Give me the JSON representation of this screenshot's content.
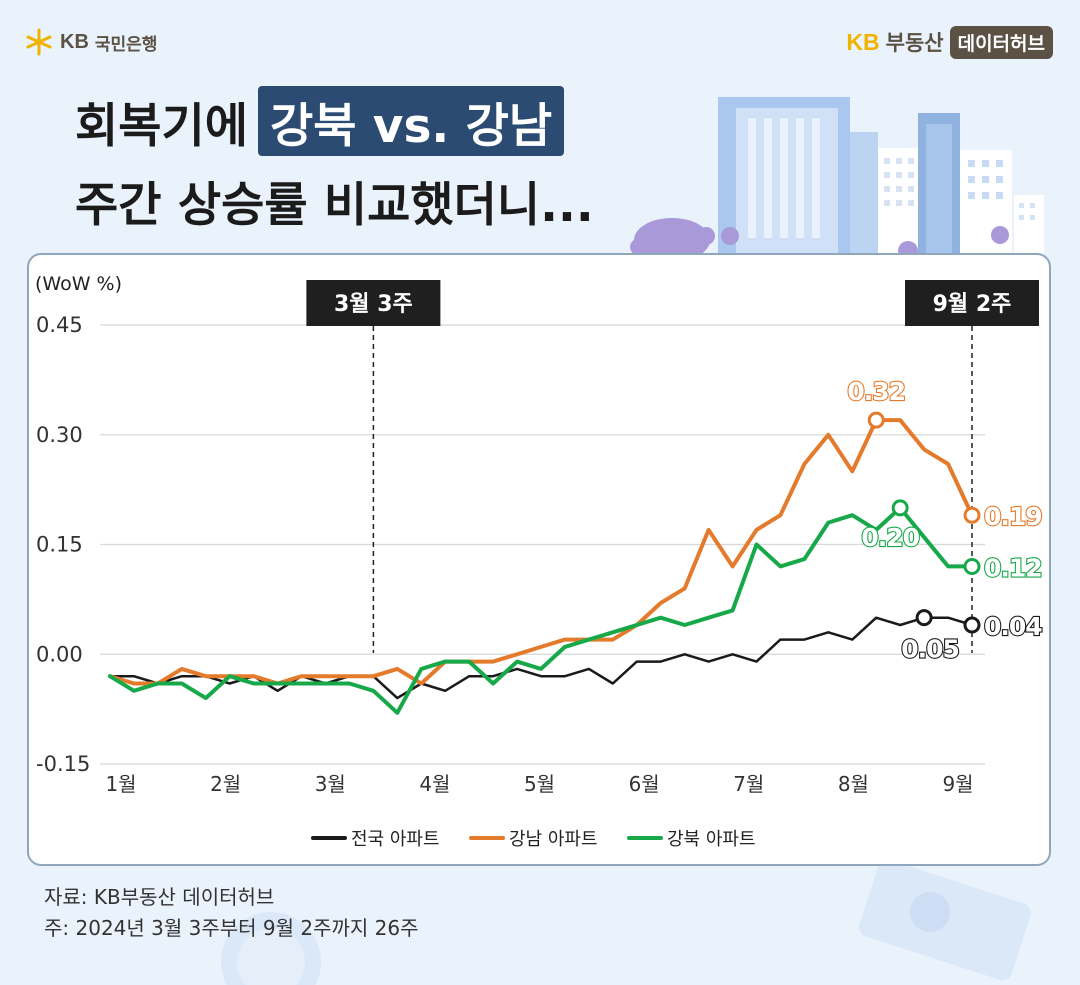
{
  "header": {
    "left_logo_kb": "KB",
    "left_logo_bank": "국민은행",
    "right_logo_kb": "KB",
    "right_logo_realestate": "부동산",
    "right_logo_hub": "데이터허브"
  },
  "title": {
    "line1_prefix": "회복기에",
    "line1_highlight": "강북 vs. 강남",
    "line2": "주간 상승률 비교했더니..."
  },
  "footer": {
    "source": "자료: KB부동산 데이터허브",
    "note": "주: 2024년 3월 3주부터 9월 2주까지 26주"
  },
  "colors": {
    "national": "#1a1a1a",
    "gangnam": "#e47b2c",
    "gangbuk": "#17a84a",
    "highlight_bg": "#2b4b72",
    "card_border": "#8fa6bd"
  },
  "chart_data": {
    "type": "line",
    "unit_label": "(WoW %)",
    "ylim": [
      -0.15,
      0.45
    ],
    "yticks": [
      "0.45",
      "0.30",
      "0.15",
      "0.00",
      "-0.15"
    ],
    "ytick_values": [
      0.45,
      0.3,
      0.15,
      0.0,
      -0.15
    ],
    "x_month_labels": [
      "1월",
      "2월",
      "3월",
      "4월",
      "5월",
      "6월",
      "7월",
      "8월",
      "9월"
    ],
    "grid": true,
    "legend_position": "bottom",
    "series": [
      {
        "name": "전국 아파트",
        "color": "#1a1a1a",
        "values": [
          -0.03,
          -0.03,
          -0.04,
          -0.03,
          -0.03,
          -0.04,
          -0.03,
          -0.05,
          -0.03,
          -0.04,
          -0.03,
          -0.03,
          -0.06,
          -0.04,
          -0.05,
          -0.03,
          -0.03,
          -0.02,
          -0.03,
          -0.03,
          -0.02,
          -0.04,
          -0.01,
          -0.01,
          0.0,
          -0.01,
          0.0,
          -0.01,
          0.02,
          0.02,
          0.03,
          0.02,
          0.05,
          0.04,
          0.05,
          0.05,
          0.04
        ]
      },
      {
        "name": "강남 아파트",
        "color": "#e47b2c",
        "values": [
          -0.03,
          -0.04,
          -0.04,
          -0.02,
          -0.03,
          -0.03,
          -0.03,
          -0.04,
          -0.03,
          -0.03,
          -0.03,
          -0.03,
          -0.02,
          -0.04,
          -0.01,
          -0.01,
          -0.01,
          0.0,
          0.01,
          0.02,
          0.02,
          0.02,
          0.04,
          0.07,
          0.09,
          0.17,
          0.12,
          0.17,
          0.19,
          0.26,
          0.3,
          0.25,
          0.32,
          0.32,
          0.28,
          0.26,
          0.19
        ]
      },
      {
        "name": "강북 아파트",
        "color": "#17a84a",
        "values": [
          -0.03,
          -0.05,
          -0.04,
          -0.04,
          -0.06,
          -0.03,
          -0.04,
          -0.04,
          -0.04,
          -0.04,
          -0.04,
          -0.05,
          -0.08,
          -0.02,
          -0.01,
          -0.01,
          -0.04,
          -0.01,
          -0.02,
          0.01,
          0.02,
          0.03,
          0.04,
          0.05,
          0.04,
          0.05,
          0.06,
          0.15,
          0.12,
          0.13,
          0.18,
          0.19,
          0.17,
          0.2,
          0.16,
          0.12,
          0.12
        ]
      }
    ],
    "markers": [
      {
        "label": "3월 3주",
        "index": 11
      },
      {
        "label": "9월 2주",
        "index": 36
      }
    ],
    "annotations": [
      {
        "label": "0.32",
        "series": 1,
        "index": 32,
        "place": "above"
      },
      {
        "label": "0.19",
        "series": 1,
        "index": 36,
        "place": "right"
      },
      {
        "label": "0.20",
        "series": 2,
        "index": 33,
        "place": "below-left"
      },
      {
        "label": "0.12",
        "series": 2,
        "index": 36,
        "place": "right"
      },
      {
        "label": "0.05",
        "series": 0,
        "index": 34,
        "place": "below"
      },
      {
        "label": "0.04",
        "series": 0,
        "index": 36,
        "place": "right"
      }
    ]
  }
}
